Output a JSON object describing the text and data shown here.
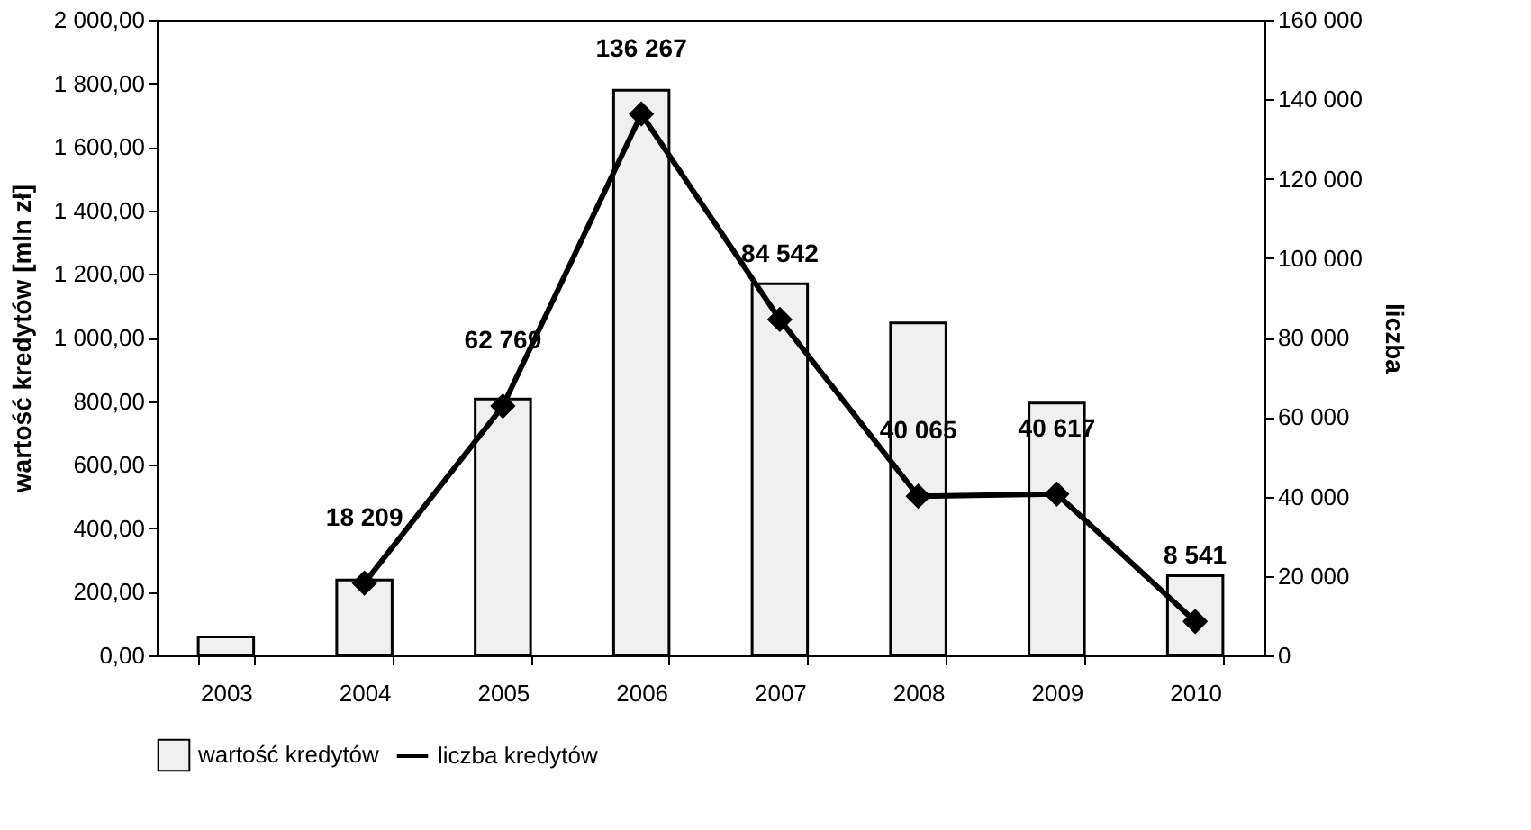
{
  "chart_data": {
    "type": "bar",
    "ylabel": "wartość kredytów [mln zł]",
    "y2label": "liczba",
    "categories": [
      "2003",
      "2004",
      "2005",
      "2006",
      "2007",
      "2008",
      "2009",
      "2010"
    ],
    "series": [
      {
        "name": "wartość kredytów",
        "color": "#f0f0f0",
        "values": [
          58,
          237,
          807,
          1778,
          1169,
          1046,
          794,
          251
        ]
      },
      {
        "name": "liczba kredytów",
        "type": "line",
        "axis": "y2",
        "color": "#000000",
        "marker": "diamond",
        "values": [
          null,
          18209,
          62769,
          136267,
          84542,
          40065,
          40617,
          8541
        ],
        "value_labels": [
          null,
          "18 209",
          "62 769",
          "136 267",
          "84 542",
          "40 065",
          "40 617",
          "8 541"
        ]
      }
    ],
    "ylim": [
      0,
      2000
    ],
    "yticks": [
      {
        "value": 0,
        "label": "0,00"
      },
      {
        "value": 200,
        "label": "200,00"
      },
      {
        "value": 400,
        "label": "400,00"
      },
      {
        "value": 600,
        "label": "600,00"
      },
      {
        "value": 800,
        "label": "800,00"
      },
      {
        "value": 1000,
        "label": "1 000,00"
      },
      {
        "value": 1200,
        "label": "1 200,00"
      },
      {
        "value": 1400,
        "label": "1 400,00"
      },
      {
        "value": 1600,
        "label": "1 600,00"
      },
      {
        "value": 1800,
        "label": "1 800,00"
      },
      {
        "value": 2000,
        "label": "2 000,00"
      }
    ],
    "y2lim": [
      0,
      160000
    ],
    "y2ticks": [
      0,
      {
        "value": 20000,
        "label": "20 000"
      },
      {
        "value": 40000,
        "label": "40 000"
      },
      {
        "value": 60000,
        "label": "60 000"
      },
      {
        "value": 80000,
        "label": "80 000"
      },
      {
        "value": 100000,
        "label": "100 000"
      },
      {
        "value": 120000,
        "label": "120 000"
      },
      {
        "value": 140000,
        "label": "140 000"
      },
      {
        "value": 160000,
        "label": "160 000"
      }
    ],
    "grid": false,
    "legend": "bottom"
  }
}
